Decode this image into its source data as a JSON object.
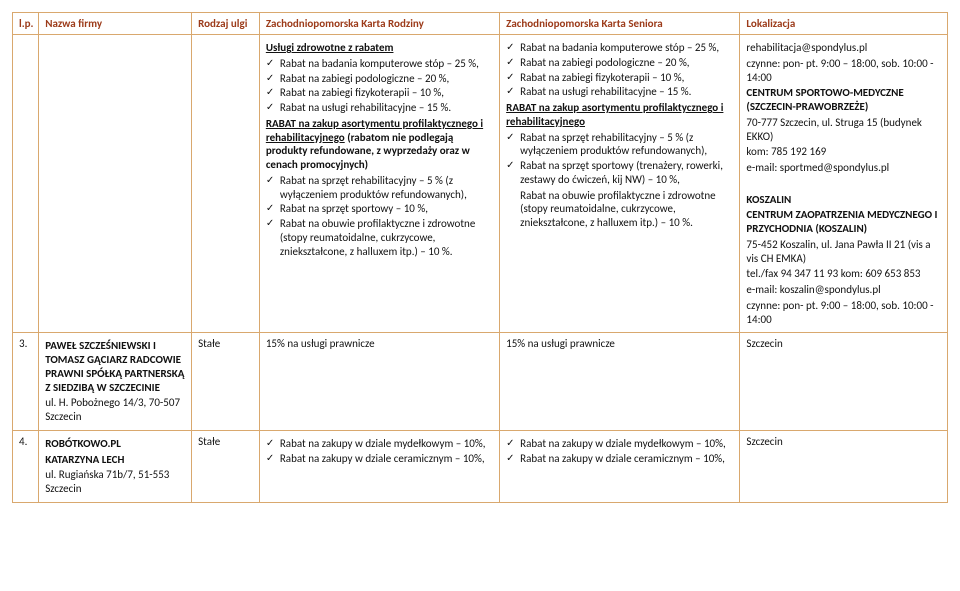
{
  "header": {
    "lp": "l.p.",
    "firm": "Nazwa firmy",
    "ulga": "Rodzaj ulgi",
    "kr": "Zachodniopomorska Karta Rodziny",
    "ks": "Zachodniopomorska Karta Seniora",
    "lok": "Lokalizacja"
  },
  "r1": {
    "kr": {
      "t1": "Usługi zdrowotne z rabatem",
      "i1": "Rabat na badania komputerowe stóp – 25 %,",
      "i2": "Rabat na zabiegi podologiczne – 20 %,",
      "i3": "Rabat na zabiegi fizykoterapii – 10 %,",
      "i4": "Rabat na usługi rehabilitacyjne – 15 %.",
      "t2a": "RABAT na zakup asortymentu profilaktycznego i rehabilitacyjnego",
      "t2b": " (rabatom nie podlegają produkty refundowane, z wyprzedaży oraz w cenach promocyjnych)",
      "i5": "Rabat na sprzęt rehabilitacyjny – 5 % (z wyłączeniem produktów refundowanych),",
      "i6": "Rabat na sprzęt sportowy – 10 %,",
      "i7": "Rabat na obuwie profilaktyczne i zdrowotne (stopy reumatoidalne, cukrzycowe, zniekształcone, z halluxem itp.) – 10 %."
    },
    "ks": {
      "i1": "Rabat na badania komputerowe stóp – 25 %,",
      "i2": "Rabat na zabiegi podologiczne – 20 %,",
      "i3": "Rabat na zabiegi fizykoterapii – 10 %,",
      "i4": "Rabat na usługi rehabilitacyjne – 15 %.",
      "t2": "RABAT na zakup asortymentu profilaktycznego i rehabilitacyjnego",
      "i5": "Rabat na sprzęt rehabilitacyjny – 5 % (z wyłączeniem produktów refundowanych),",
      "i6": "Rabat na sprzęt sportowy (trenażery, rowerki, zestawy do ćwiczeń, kij NW) – 10 %,",
      "i7p": "Rabat na obuwie profilaktyczne i zdrowotne (stopy reumatoidalne, cukrzycowe, zniekształcone, z halluxem itp.) – 10 %."
    },
    "lok": {
      "l1": "rehabilitacja@spondylus.pl",
      "l2": "czynne: pon- pt. 9:00 – 18:00, sob. 10:00 - 14:00",
      "l3a": "CENTRUM SPORTOWO-MEDYCZNE (SZCZECIN-PRAWOBRZEŻE)",
      "l4": "70-777 Szczecin, ul. Struga 15 (budynek EKKO)",
      "l5": "kom: 785 192 169",
      "l6": "e-mail: sportmed@spondylus.pl",
      "l7a": "KOSZALIN",
      "l7b": "CENTRUM ZAOPATRZENIA MEDYCZNEGO I PRZYCHODNIA (KOSZALIN)",
      "l8": "75-452 Koszalin, ul. Jana Pawła II 21 (vis a vis CH EMKA)",
      "l9": "tel./fax  94 347 11 93 kom: 609 653 853",
      "l10": "e-mail: koszalin@spondylus.pl",
      "l11": "czynne: pon- pt. 9:00 – 18:00, sob. 10:00 - 14:00"
    }
  },
  "r2": {
    "lp": "3.",
    "firm1": "PAWEŁ SZCZEŚNIEWSKI I TOMASZ GĄCIARZ RADCOWIE PRAWNI SPÓŁKĄ PARTNERSKĄ Z SIEDZIBĄ W SZCZECINIE",
    "firm2": "ul. H. Pobożnego 14/3, 70-507 Szczecin",
    "ulga": "Stałe",
    "kr": "15% na usługi prawnicze",
    "ks": "15% na usługi prawnicze",
    "lok": "Szczecin"
  },
  "r3": {
    "lp": "4.",
    "firm1": "ROBÓTKOWO.PL",
    "firm2": "KATARZYNA LECH",
    "firm3": "ul. Rugiańska 71b/7, 51-553 Szczecin",
    "ulga": "Stałe",
    "kr_i1": "Rabat na zakupy w dziale mydełkowym – 10%,",
    "kr_i2": "Rabat na zakupy w dziale ceramicznym – 10%,",
    "ks_i1": "Rabat na zakupy w dziale mydełkowym – 10%,",
    "ks_i2": "Rabat na zakupy w dziale ceramicznym – 10%,",
    "lok": "Szczecin"
  }
}
